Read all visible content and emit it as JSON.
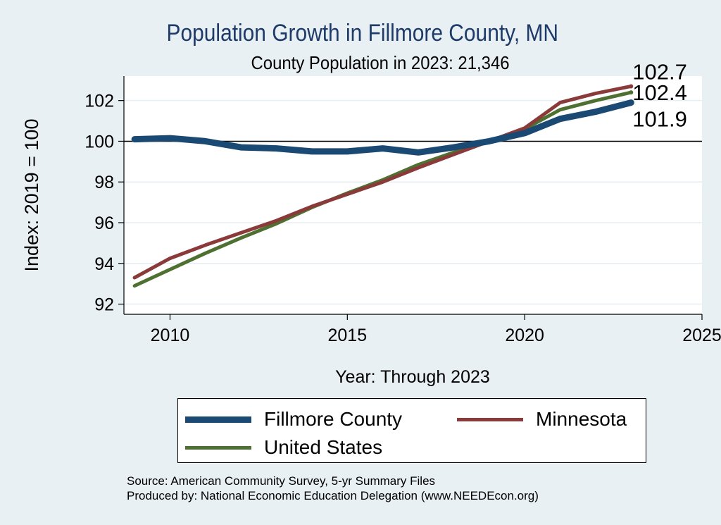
{
  "chart_data": {
    "type": "line",
    "title": "Population Growth in Fillmore County, MN",
    "subtitle": "County Population in 2023: 21,346",
    "xlabel": "Year: Through 2023",
    "ylabel": "Index: 2019 = 100",
    "xlim": [
      2008.7,
      2025
    ],
    "ylim": [
      91.5,
      103.2
    ],
    "xticks": [
      2010,
      2015,
      2020,
      2025
    ],
    "yticks": [
      92,
      94,
      96,
      98,
      100,
      102
    ],
    "reference_line": 100,
    "grid": true,
    "legend_position": "bottom",
    "x": [
      2009,
      2010,
      2011,
      2012,
      2013,
      2014,
      2015,
      2016,
      2017,
      2018,
      2019,
      2020,
      2021,
      2022,
      2023
    ],
    "series": [
      {
        "name": "Fillmore  County",
        "color": "#1a4a73",
        "values": [
          100.1,
          100.15,
          100.0,
          99.7,
          99.65,
          99.5,
          99.5,
          99.65,
          99.45,
          99.7,
          100.0,
          100.4,
          101.1,
          101.45,
          101.9
        ],
        "end_label": "101.9"
      },
      {
        "name": "Minnesota",
        "color": "#8b3a3a",
        "values": [
          93.3,
          94.25,
          94.9,
          95.5,
          96.1,
          96.8,
          97.4,
          98.0,
          98.7,
          99.35,
          100.0,
          100.65,
          101.9,
          102.35,
          102.7
        ],
        "end_label": "102.7"
      },
      {
        "name": "United States",
        "color": "#4e7030",
        "values": [
          92.9,
          93.7,
          94.5,
          95.25,
          95.95,
          96.75,
          97.45,
          98.1,
          98.85,
          99.45,
          100.0,
          100.6,
          101.55,
          102.0,
          102.4
        ],
        "end_label": "102.4"
      }
    ]
  },
  "source_line": "Source: American Community Survey, 5-yr Summary Files",
  "produced_line": "Produced by: National Economic Education Delegation (www.NEEDEcon.org)"
}
